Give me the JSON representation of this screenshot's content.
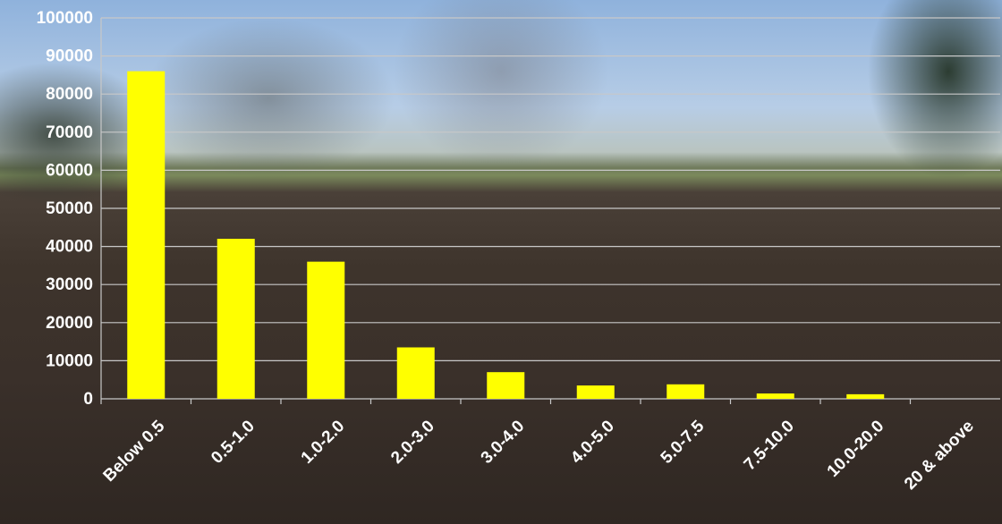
{
  "chart_data": {
    "type": "bar",
    "categories": [
      "Below 0.5",
      "0.5-1.0",
      "1.0-2.0",
      "2.0-3.0",
      "3.0-4.0",
      "4.0-5.0",
      "5.0-7.5",
      "7.5-10.0",
      "10.0-20.0",
      "20 & above"
    ],
    "values": [
      86000,
      42000,
      36000,
      13500,
      7000,
      3500,
      3800,
      1400,
      1200,
      0
    ],
    "color": "#ffff00",
    "ylim": [
      0,
      100000
    ],
    "yticks": [
      0,
      10000,
      20000,
      30000,
      40000,
      50000,
      60000,
      70000,
      80000,
      90000,
      100000
    ],
    "grid": true
  }
}
